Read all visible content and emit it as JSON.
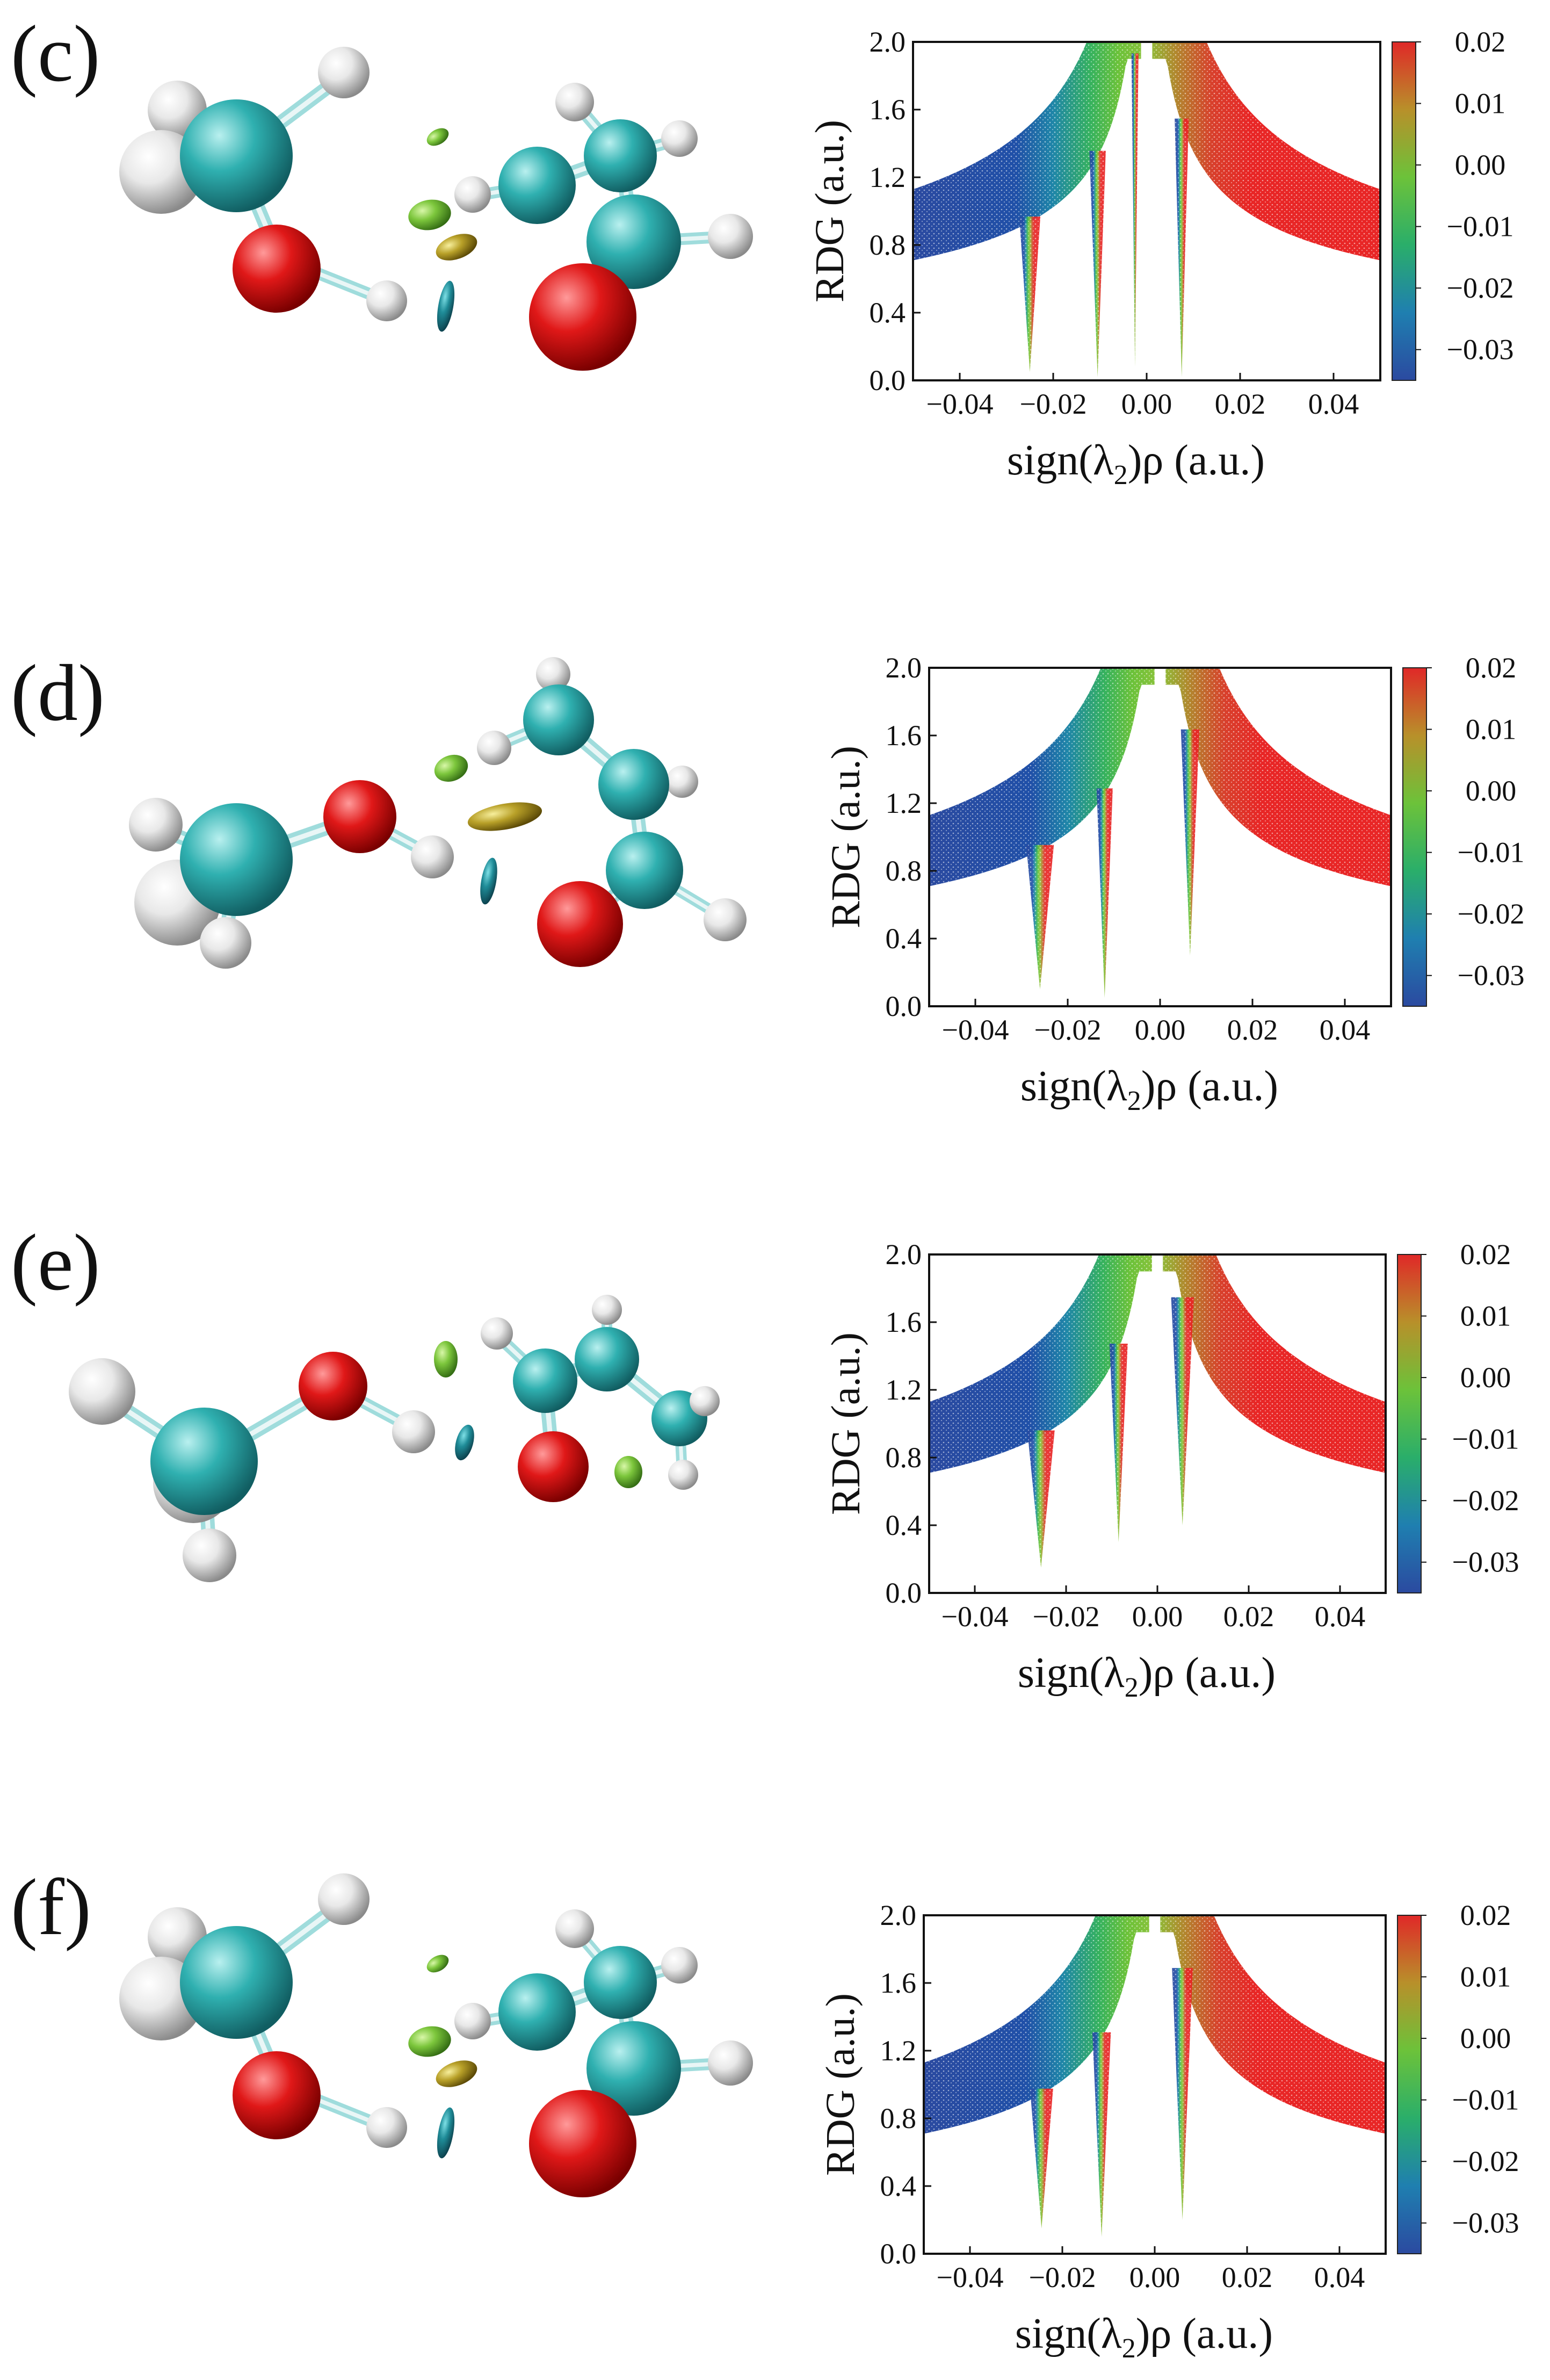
{
  "charts": [
    {
      "label": "(c)"
    },
    {
      "label": "(d)"
    },
    {
      "label": "(e)"
    },
    {
      "label": "(f)"
    }
  ],
  "chart_data": [
    {
      "type": "scatter",
      "panel": "(c)",
      "xlabel": "sign(λ₂)ρ (a.u.)",
      "xlabel_main": "sign(λ",
      "xlabel_sub": "2",
      "xlabel_tail": ")ρ (a.u.)",
      "ylabel": "RDG (a.u.)",
      "xlim": [
        -0.05,
        0.05
      ],
      "ylim": [
        0.0,
        2.0
      ],
      "xticks": [
        -0.04,
        -0.02,
        0.0,
        0.02,
        0.04
      ],
      "xtick_labels": [
        "−0.04",
        "−0.02",
        "0.00",
        "0.02",
        "0.04"
      ],
      "yticks": [
        0.0,
        0.4,
        0.8,
        1.2,
        1.6,
        2.0
      ],
      "ytick_labels": [
        "0.0",
        "0.4",
        "0.8",
        "1.2",
        "1.6",
        "2.0"
      ],
      "colorbar": {
        "range": [
          -0.035,
          0.02
        ],
        "ticks": [
          0.02,
          0.01,
          0.0,
          -0.01,
          -0.02,
          -0.03
        ],
        "tick_labels": [
          "0.02",
          "0.01",
          "0.00",
          "−0.01",
          "−0.02",
          "−0.03"
        ],
        "colors": [
          "#2b4aa0",
          "#1f7fb0",
          "#2aae6a",
          "#6cc23a",
          "#b8902a",
          "#e02828"
        ]
      },
      "spikes": [
        {
          "x": -0.025,
          "ymin": 0.05,
          "width": 0.0045
        },
        {
          "x": -0.0105,
          "ymin": 0.02,
          "width": 0.0035
        },
        {
          "x": -0.0025,
          "ymin": 0.08,
          "width": 0.0015
        },
        {
          "x": 0.0075,
          "ymin": 0.02,
          "width": 0.003
        }
      ]
    },
    {
      "type": "scatter",
      "panel": "(d)",
      "xlabel": "sign(λ₂)ρ (a.u.)",
      "xlabel_main": "sign(λ",
      "xlabel_sub": "2",
      "xlabel_tail": ")ρ (a.u.)",
      "ylabel": "RDG (a.u.)",
      "xlim": [
        -0.05,
        0.05
      ],
      "ylim": [
        0.0,
        2.0
      ],
      "xticks": [
        -0.04,
        -0.02,
        0.0,
        0.02,
        0.04
      ],
      "xtick_labels": [
        "−0.04",
        "−0.02",
        "0.00",
        "0.02",
        "0.04"
      ],
      "yticks": [
        0.0,
        0.4,
        0.8,
        1.2,
        1.6,
        2.0
      ],
      "ytick_labels": [
        "0.0",
        "0.4",
        "0.8",
        "1.2",
        "1.6",
        "2.0"
      ],
      "colorbar": {
        "range": [
          -0.035,
          0.02
        ],
        "ticks": [
          0.02,
          0.01,
          0.0,
          -0.01,
          -0.02,
          -0.03
        ],
        "tick_labels": [
          "0.02",
          "0.01",
          "0.00",
          "−0.01",
          "−0.02",
          "−0.03"
        ],
        "colors": [
          "#2b4aa0",
          "#1f7fb0",
          "#2aae6a",
          "#6cc23a",
          "#b8902a",
          "#e02828"
        ]
      },
      "spikes": [
        {
          "x": -0.026,
          "ymin": 0.1,
          "width": 0.006
        },
        {
          "x": -0.012,
          "ymin": 0.05,
          "width": 0.0035
        },
        {
          "x": 0.0065,
          "ymin": 0.3,
          "width": 0.004
        }
      ]
    },
    {
      "type": "scatter",
      "panel": "(e)",
      "xlabel": "sign(λ₂)ρ (a.u.)",
      "xlabel_main": "sign(λ",
      "xlabel_sub": "2",
      "xlabel_tail": ")ρ (a.u.)",
      "ylabel": "RDG (a.u.)",
      "xlim": [
        -0.05,
        0.05
      ],
      "ylim": [
        0.0,
        2.0
      ],
      "xticks": [
        -0.04,
        -0.02,
        0.0,
        0.02,
        0.04
      ],
      "xtick_labels": [
        "−0.04",
        "−0.02",
        "0.00",
        "0.02",
        "0.04"
      ],
      "yticks": [
        0.0,
        0.4,
        0.8,
        1.2,
        1.6,
        2.0
      ],
      "ytick_labels": [
        "0.0",
        "0.4",
        "0.8",
        "1.2",
        "1.6",
        "2.0"
      ],
      "colorbar": {
        "range": [
          -0.035,
          0.02
        ],
        "ticks": [
          0.02,
          0.01,
          0.0,
          -0.01,
          -0.02,
          -0.03
        ],
        "tick_labels": [
          "0.02",
          "0.01",
          "0.00",
          "−0.01",
          "−0.02",
          "−0.03"
        ],
        "colors": [
          "#2b4aa0",
          "#1f7fb0",
          "#2aae6a",
          "#6cc23a",
          "#b8902a",
          "#e02828"
        ]
      },
      "spikes": [
        {
          "x": -0.0255,
          "ymin": 0.15,
          "width": 0.006
        },
        {
          "x": -0.0085,
          "ymin": 0.3,
          "width": 0.004
        },
        {
          "x": 0.0055,
          "ymin": 0.4,
          "width": 0.005
        }
      ]
    },
    {
      "type": "scatter",
      "panel": "(f)",
      "xlabel": "sign(λ₂)ρ (a.u.)",
      "xlabel_main": "sign(λ",
      "xlabel_sub": "2",
      "xlabel_tail": ")ρ (a.u.)",
      "ylabel": "RDG (a.u.)",
      "xlim": [
        -0.05,
        0.05
      ],
      "ylim": [
        0.0,
        2.0
      ],
      "xticks": [
        -0.04,
        -0.02,
        0.0,
        0.02,
        0.04
      ],
      "xtick_labels": [
        "−0.04",
        "−0.02",
        "0.00",
        "0.02",
        "0.04"
      ],
      "yticks": [
        0.0,
        0.4,
        0.8,
        1.2,
        1.6,
        2.0
      ],
      "ytick_labels": [
        "0.0",
        "0.4",
        "0.8",
        "1.2",
        "1.6",
        "2.0"
      ],
      "colorbar": {
        "range": [
          -0.035,
          0.02
        ],
        "ticks": [
          0.02,
          0.01,
          0.0,
          -0.01,
          -0.02,
          -0.03
        ],
        "tick_labels": [
          "0.02",
          "0.01",
          "0.00",
          "−0.01",
          "−0.02",
          "−0.03"
        ],
        "colors": [
          "#2b4aa0",
          "#1f7fb0",
          "#2aae6a",
          "#6cc23a",
          "#b8902a",
          "#e02828"
        ]
      },
      "spikes": [
        {
          "x": -0.0245,
          "ymin": 0.15,
          "width": 0.005
        },
        {
          "x": -0.0115,
          "ymin": 0.1,
          "width": 0.004
        },
        {
          "x": 0.006,
          "ymin": 0.2,
          "width": 0.0045
        }
      ]
    }
  ]
}
